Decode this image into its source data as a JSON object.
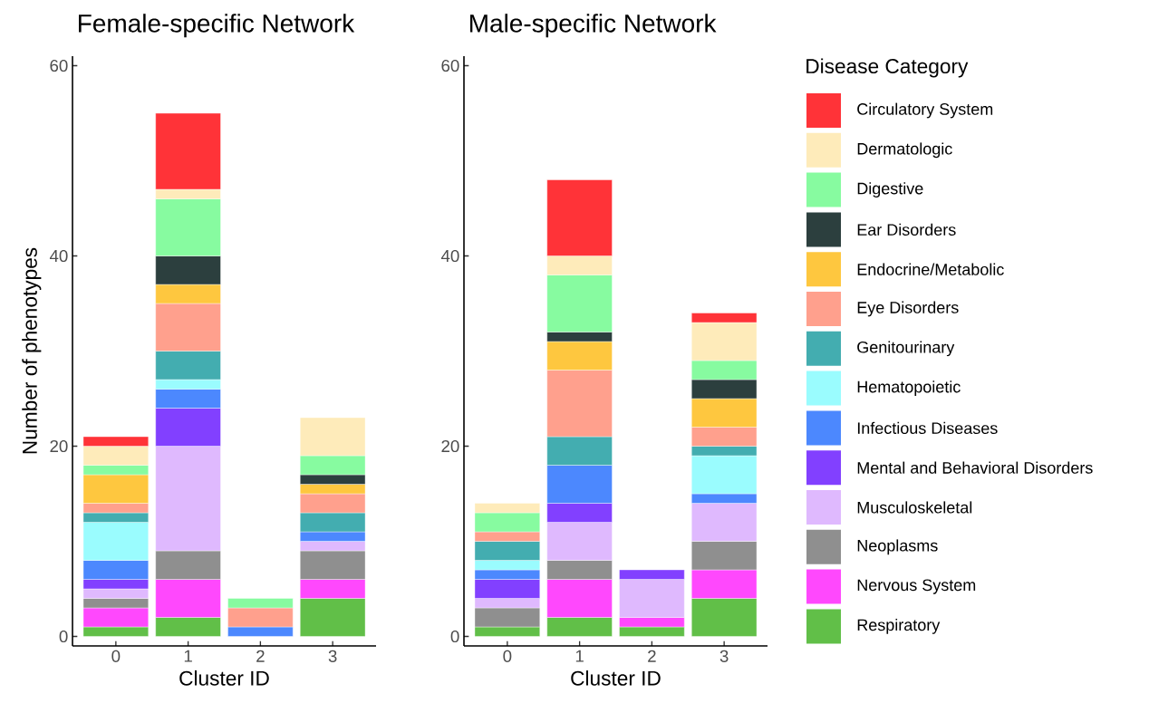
{
  "chart_data": [
    {
      "type": "bar",
      "stacked": true,
      "title": "Female-specific Network",
      "xlabel": "Cluster ID",
      "ylabel": "Number of phenotypes",
      "categories": [
        "0",
        "1",
        "2",
        "3"
      ],
      "ylim": [
        -1,
        61
      ],
      "yticks": [
        0,
        20,
        40,
        60
      ],
      "series": [
        {
          "color": "#61BF48",
          "values": [
            1,
            2,
            null,
            4
          ]
        },
        {
          "color": "#FF48FD",
          "values": [
            2,
            4,
            null,
            2
          ]
        },
        {
          "color": "#8F8F8F",
          "values": [
            1,
            3,
            null,
            3
          ]
        },
        {
          "color": "#DFB9FE",
          "values": [
            1,
            11,
            null,
            1
          ]
        },
        {
          "color": "#8240FF",
          "values": [
            1,
            4,
            null,
            null
          ]
        },
        {
          "color": "#4C88FE",
          "values": [
            2,
            2,
            1,
            1
          ]
        },
        {
          "color": "#9AFCFE",
          "values": [
            4,
            1,
            null,
            null
          ]
        },
        {
          "color": "#43ADB0",
          "values": [
            1,
            3,
            null,
            2
          ]
        },
        {
          "color": "#FFA08D",
          "values": [
            1,
            5,
            2,
            2
          ]
        },
        {
          "color": "#FEC73F",
          "values": [
            3,
            2,
            null,
            1
          ]
        },
        {
          "color": "#2C3F3E",
          "values": [
            null,
            3,
            null,
            1
          ]
        },
        {
          "color": "#87FBA0",
          "values": [
            1,
            6,
            1,
            2
          ]
        },
        {
          "color": "#FEEBBA",
          "values": [
            2,
            1,
            null,
            4
          ]
        },
        {
          "color": "#FF3338",
          "values": [
            1,
            8,
            null,
            null
          ]
        }
      ]
    },
    {
      "type": "bar",
      "stacked": true,
      "title": "Male-specific Network",
      "xlabel": "Cluster ID",
      "legend_title": "Disease Category",
      "legend": "right",
      "categories": [
        "0",
        "1",
        "2",
        "3"
      ],
      "ylim": [
        -1,
        61
      ],
      "yticks": [
        0,
        20,
        40,
        60
      ],
      "series": [
        {
          "name": "Respiratory",
          "color": "#61BF48",
          "values": [
            1,
            2,
            1,
            4
          ]
        },
        {
          "name": "Nervous System",
          "color": "#FF48FD",
          "values": [
            null,
            4,
            1,
            3
          ]
        },
        {
          "name": "Neoplasms",
          "color": "#8F8F8F",
          "values": [
            2,
            2,
            null,
            3
          ]
        },
        {
          "name": "Musculoskeletal",
          "color": "#DFB9FE",
          "values": [
            1,
            4,
            4,
            4
          ]
        },
        {
          "name": "Mental and Behavioral Disorders",
          "color": "#8240FF",
          "values": [
            2,
            2,
            1,
            null
          ]
        },
        {
          "name": "Infectious Diseases",
          "color": "#4C88FE",
          "values": [
            1,
            4,
            null,
            1
          ]
        },
        {
          "name": "Hematopoietic",
          "color": "#9AFCFE",
          "values": [
            1,
            null,
            null,
            4
          ]
        },
        {
          "name": "Genitourinary",
          "color": "#43ADB0",
          "values": [
            2,
            3,
            null,
            1
          ]
        },
        {
          "name": "Eye Disorders",
          "color": "#FFA08D",
          "values": [
            1,
            7,
            null,
            2
          ]
        },
        {
          "name": "Endocrine/Metabolic",
          "color": "#FEC73F",
          "values": [
            null,
            3,
            null,
            3
          ]
        },
        {
          "name": "Ear Disorders",
          "color": "#2C3F3E",
          "values": [
            null,
            1,
            null,
            2
          ]
        },
        {
          "name": "Digestive",
          "color": "#87FBA0",
          "values": [
            2,
            6,
            null,
            2
          ]
        },
        {
          "name": "Dermatologic",
          "color": "#FEEBBA",
          "values": [
            1,
            2,
            null,
            4
          ]
        },
        {
          "name": "Circulatory System",
          "color": "#FF3338",
          "values": [
            null,
            8,
            null,
            1
          ]
        }
      ]
    }
  ]
}
